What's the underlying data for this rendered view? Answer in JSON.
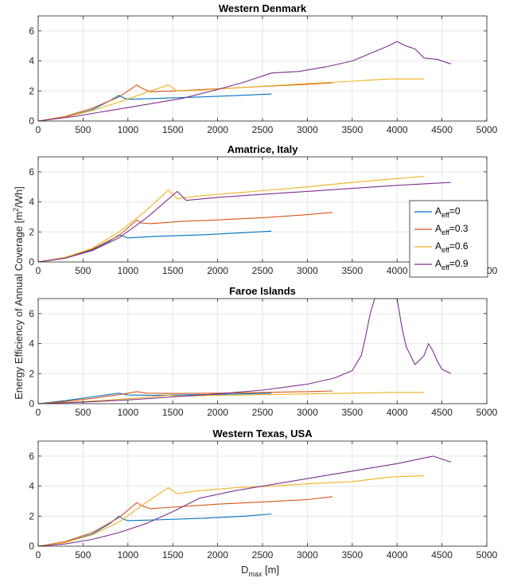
{
  "figure": {
    "ylabel_main": "Energy Efficiency of Annual Coverage [m",
    "ylabel_sup": "2",
    "ylabel_end": "/Wh]",
    "xlabel_main": "D",
    "xlabel_sub": "max",
    "xlabel_end": " [m]"
  },
  "legend": {
    "placement": "right, spanning panels 2-3",
    "prefix": "A",
    "sub": "eff",
    "entries": [
      {
        "value": "=0",
        "color": "#0072BD"
      },
      {
        "value": "=0.3",
        "color": "#D95319"
      },
      {
        "value": "=0.6",
        "color": "#EDB120"
      },
      {
        "value": "=0.9",
        "color": "#7E2F8E"
      }
    ]
  },
  "chart_data": [
    {
      "type": "line",
      "title": "Western Denmark",
      "xlim": [
        0,
        5000
      ],
      "ylim": [
        0,
        7
      ],
      "xticks": [
        "0",
        "500",
        "1000",
        "1500",
        "2000",
        "2500",
        "3000",
        "3500",
        "4000",
        "4500",
        "5000"
      ],
      "yticks": [
        "0",
        "2",
        "4",
        "6"
      ],
      "grid": true,
      "series": [
        {
          "color": "#0072BD",
          "x": [
            0,
            300,
            600,
            800,
            900,
            950,
            1000,
            1300,
            1800,
            2300,
            2600
          ],
          "y": [
            0,
            0.25,
            0.75,
            1.35,
            1.7,
            1.55,
            1.45,
            1.5,
            1.6,
            1.72,
            1.8
          ]
        },
        {
          "color": "#D95319",
          "x": [
            0,
            300,
            600,
            900,
            1100,
            1150,
            1250,
            1500,
            2000,
            2500,
            3000,
            3280
          ],
          "y": [
            0,
            0.3,
            0.85,
            1.6,
            2.4,
            2.2,
            1.95,
            2.0,
            2.15,
            2.3,
            2.45,
            2.55
          ]
        },
        {
          "color": "#EDB120",
          "x": [
            0,
            300,
            600,
            900,
            1200,
            1450,
            1550,
            1800,
            2200,
            2600,
            3000,
            3500,
            3900,
            4300
          ],
          "y": [
            0,
            0.25,
            0.7,
            1.25,
            1.9,
            2.4,
            2.0,
            2.05,
            2.2,
            2.35,
            2.5,
            2.65,
            2.8,
            2.8
          ]
        },
        {
          "color": "#7E2F8E",
          "x": [
            0,
            400,
            800,
            1200,
            1600,
            2000,
            2300,
            2600,
            2900,
            3200,
            3500,
            3700,
            3900,
            4000,
            4100,
            4200,
            4300,
            4450,
            4600
          ],
          "y": [
            0,
            0.3,
            0.7,
            1.1,
            1.5,
            2.1,
            2.6,
            3.2,
            3.3,
            3.6,
            4.0,
            4.5,
            5.0,
            5.3,
            5.0,
            4.8,
            4.2,
            4.1,
            3.8
          ]
        }
      ]
    },
    {
      "type": "line",
      "title": "Amatrice, Italy",
      "xlim": [
        0,
        5000
      ],
      "ylim": [
        0,
        7
      ],
      "xticks": [
        "0",
        "500",
        "1000",
        "1500",
        "2000",
        "2500",
        "3000",
        "3500",
        "4000",
        "4500",
        "5000"
      ],
      "yticks": [
        "0",
        "2",
        "4",
        "6"
      ],
      "grid": true,
      "series": [
        {
          "color": "#0072BD",
          "x": [
            0,
            300,
            600,
            800,
            900,
            950,
            1000,
            1300,
            1800,
            2300,
            2600
          ],
          "y": [
            0,
            0.25,
            0.8,
            1.4,
            1.8,
            1.7,
            1.6,
            1.7,
            1.8,
            1.95,
            2.05
          ]
        },
        {
          "color": "#D95319",
          "x": [
            0,
            300,
            600,
            900,
            1100,
            1150,
            1250,
            1600,
            2000,
            2500,
            3000,
            3280
          ],
          "y": [
            0,
            0.3,
            0.85,
            1.75,
            2.8,
            2.6,
            2.55,
            2.7,
            2.8,
            2.95,
            3.15,
            3.3
          ]
        },
        {
          "color": "#EDB120",
          "x": [
            0,
            300,
            600,
            900,
            1200,
            1400,
            1450,
            1550,
            1800,
            2200,
            2600,
            3000,
            3500,
            3900,
            4300
          ],
          "y": [
            0,
            0.3,
            0.9,
            2.0,
            3.4,
            4.5,
            4.8,
            4.2,
            4.4,
            4.6,
            4.8,
            5.0,
            5.3,
            5.5,
            5.7
          ]
        },
        {
          "color": "#7E2F8E",
          "x": [
            0,
            300,
            600,
            900,
            1200,
            1550,
            1650,
            2000,
            2500,
            3000,
            3500,
            4000,
            4300,
            4600
          ],
          "y": [
            0,
            0.25,
            0.75,
            1.6,
            2.9,
            4.7,
            4.1,
            4.3,
            4.5,
            4.7,
            4.9,
            5.1,
            5.2,
            5.3
          ]
        }
      ]
    },
    {
      "type": "line",
      "title": "Faroe Islands",
      "xlim": [
        0,
        5000
      ],
      "ylim": [
        0,
        7
      ],
      "xticks": [
        "0",
        "500",
        "1000",
        "1500",
        "2000",
        "2500",
        "3000",
        "3500",
        "4000",
        "4500",
        "5000"
      ],
      "yticks": [
        "0",
        "2",
        "4",
        "6"
      ],
      "grid": true,
      "series": [
        {
          "color": "#0072BD",
          "x": [
            0,
            300,
            600,
            900,
            1000,
            1300,
            1800,
            2300,
            2600
          ],
          "y": [
            0,
            0.2,
            0.45,
            0.7,
            0.58,
            0.55,
            0.6,
            0.65,
            0.7
          ]
        },
        {
          "color": "#D95319",
          "x": [
            0,
            300,
            600,
            900,
            1100,
            1200,
            1500,
            2000,
            2500,
            3000,
            3280
          ],
          "y": [
            0,
            0.15,
            0.35,
            0.6,
            0.8,
            0.7,
            0.68,
            0.7,
            0.75,
            0.8,
            0.85
          ]
        },
        {
          "color": "#EDB120",
          "x": [
            0,
            400,
            800,
            1200,
            1450,
            1600,
            2000,
            2500,
            3000,
            3500,
            3900,
            4300
          ],
          "y": [
            0,
            0.1,
            0.25,
            0.42,
            0.55,
            0.5,
            0.55,
            0.6,
            0.65,
            0.7,
            0.75,
            0.75
          ]
        },
        {
          "color": "#7E2F8E",
          "x": [
            0,
            500,
            1000,
            1500,
            2000,
            2500,
            3000,
            3300,
            3500,
            3600,
            3650,
            3700,
            3750,
            3800,
            3850,
            3900,
            3950,
            4000,
            4050,
            4100,
            4200,
            4300,
            4350,
            4400,
            4450,
            4500,
            4600
          ],
          "y": [
            0,
            0.1,
            0.25,
            0.45,
            0.65,
            0.9,
            1.3,
            1.7,
            2.2,
            3.2,
            4.5,
            6.0,
            7.0,
            7.0,
            7.0,
            7.0,
            7.0,
            7.0,
            5.2,
            3.8,
            2.6,
            3.2,
            4.0,
            3.5,
            2.8,
            2.3,
            2.0
          ]
        }
      ]
    },
    {
      "type": "line",
      "title": "Western Texas, USA",
      "xlim": [
        0,
        5000
      ],
      "ylim": [
        0,
        7
      ],
      "xticks": [
        "0",
        "500",
        "1000",
        "1500",
        "2000",
        "2500",
        "3000",
        "3500",
        "4000",
        "4500",
        "5000"
      ],
      "yticks": [
        "0",
        "2",
        "4",
        "6"
      ],
      "grid": true,
      "series": [
        {
          "color": "#0072BD",
          "x": [
            0,
            300,
            600,
            800,
            900,
            950,
            1000,
            1300,
            1800,
            2300,
            2600
          ],
          "y": [
            0,
            0.25,
            0.8,
            1.5,
            2.0,
            1.8,
            1.7,
            1.75,
            1.85,
            2.0,
            2.15
          ]
        },
        {
          "color": "#D95319",
          "x": [
            0,
            300,
            600,
            900,
            1100,
            1150,
            1250,
            1500,
            2000,
            2500,
            3000,
            3280
          ],
          "y": [
            0,
            0.3,
            0.9,
            1.9,
            2.9,
            2.7,
            2.5,
            2.6,
            2.8,
            2.95,
            3.1,
            3.3
          ]
        },
        {
          "color": "#EDB120",
          "x": [
            0,
            300,
            600,
            900,
            1200,
            1450,
            1550,
            1800,
            2200,
            2600,
            3000,
            3500,
            3900,
            4300
          ],
          "y": [
            0,
            0.25,
            0.75,
            1.6,
            2.9,
            3.9,
            3.5,
            3.7,
            3.9,
            4.0,
            4.15,
            4.3,
            4.6,
            4.7
          ]
        },
        {
          "color": "#7E2F8E",
          "x": [
            0,
            300,
            600,
            900,
            1200,
            1500,
            1800,
            2200,
            2600,
            3000,
            3500,
            4000,
            4400,
            4600
          ],
          "y": [
            0,
            0.15,
            0.45,
            0.9,
            1.5,
            2.3,
            3.2,
            3.7,
            4.1,
            4.5,
            5.0,
            5.5,
            6.0,
            5.6
          ]
        }
      ]
    }
  ]
}
